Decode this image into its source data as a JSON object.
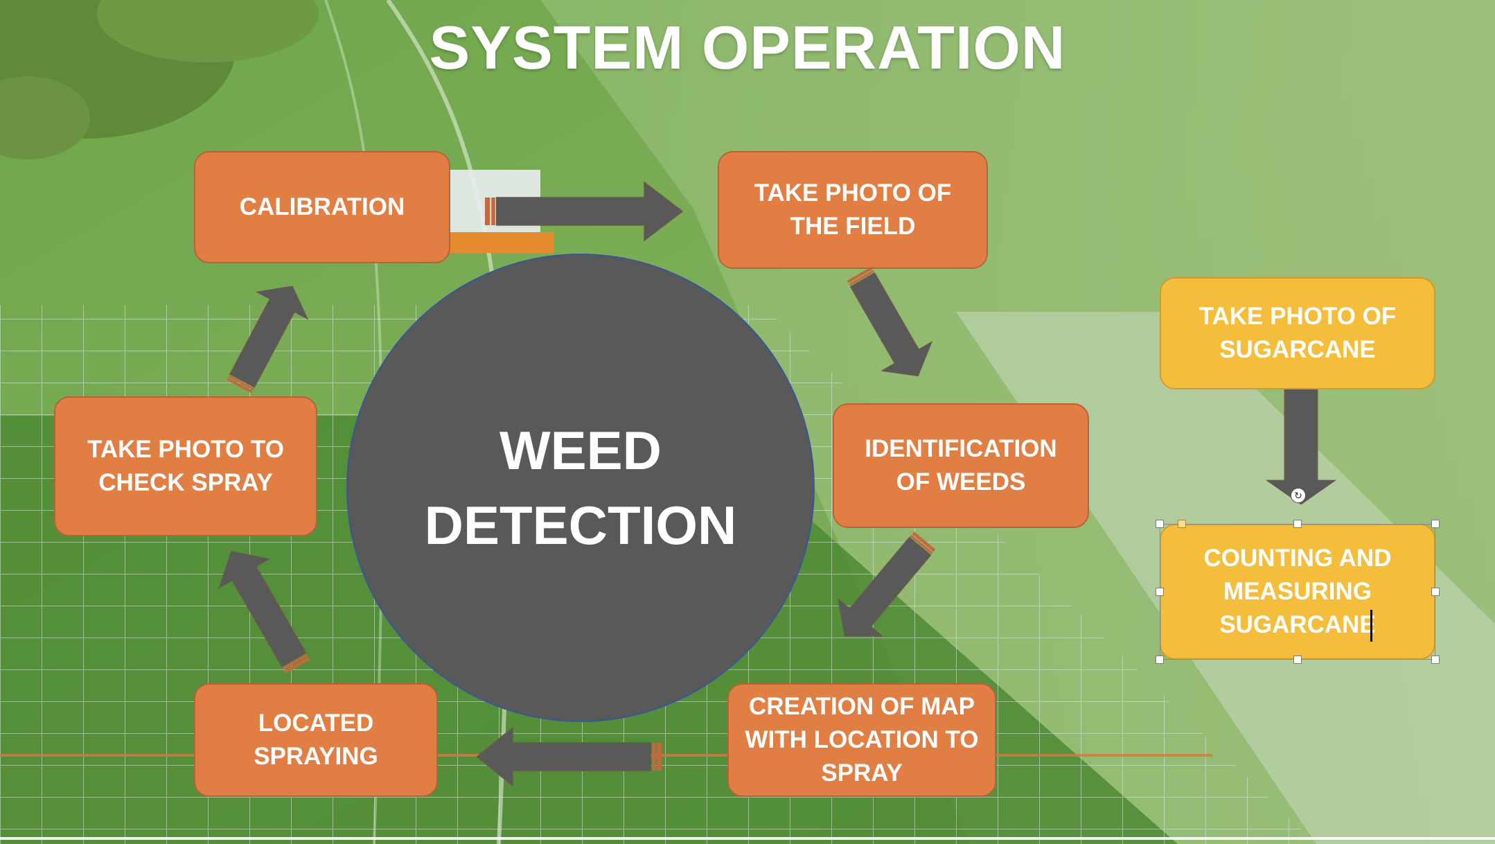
{
  "title": "SYSTEM OPERATION",
  "center": {
    "line1": "WEED",
    "line2": "DETECTION"
  },
  "steps": {
    "calibration": "CALIBRATION",
    "take_photo_field": "TAKE PHOTO OF THE FIELD",
    "identification": "IDENTIFICATION OF WEEDS",
    "creation_map": "CREATION OF MAP WITH LOCATION TO SPRAY",
    "located_spraying": "LOCATED SPRAYING",
    "take_photo_check": "TAKE PHOTO TO CHECK SPRAY"
  },
  "side": {
    "take_photo_sugarcane": "TAKE PHOTO OF SUGARCANE",
    "counting": "COUNTING AND MEASURING SUGARCANE"
  },
  "colors": {
    "orange_box": "#E07E43",
    "yellow_box": "#F4BD3C",
    "circle": "#595959",
    "arrow": "#595959",
    "arrow_stripe": "#C06A3E"
  },
  "icons": {
    "rotate": "rotate-icon"
  }
}
